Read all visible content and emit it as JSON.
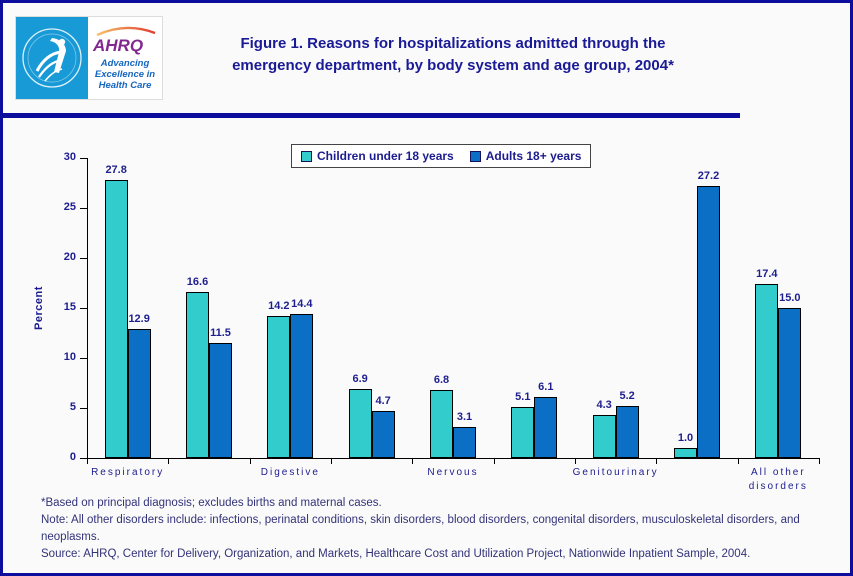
{
  "header": {
    "logo": {
      "hhs_seal": "Department of Health & Human Services USA seal",
      "org_wordmark": "AHRQ",
      "tagline_lines": [
        "Advancing",
        "Excellence in",
        "Health Care"
      ]
    },
    "title_line1": "Figure 1. Reasons for hospitalizations admitted through the",
    "title_line2": "emergency department, by body system and age group, 2004*"
  },
  "chart_data": {
    "type": "bar",
    "title": "Figure 1. Reasons for hospitalizations admitted through the emergency department, by body system and age group, 2004*",
    "xlabel": "",
    "ylabel": "Percent",
    "ylim": [
      0,
      30
    ],
    "yticks": [
      0,
      5,
      10,
      15,
      20,
      25,
      30
    ],
    "grid": false,
    "legend_position": "top-center",
    "categories": [
      "Respiratory",
      "",
      "Digestive",
      "",
      "Nervous",
      "",
      "Genitourinary",
      "",
      "All other disorders"
    ],
    "category_labels": [
      {
        "at": 0,
        "lines": [
          "Respiratory"
        ]
      },
      {
        "at": 2,
        "lines": [
          "Digestive"
        ]
      },
      {
        "at": 4,
        "lines": [
          "Nervous"
        ]
      },
      {
        "at": 6,
        "lines": [
          "Genitourinary"
        ]
      },
      {
        "at": 8,
        "lines": [
          "All other",
          "disorders"
        ]
      }
    ],
    "series": [
      {
        "name": "Children under 18 years",
        "color": "#33cccc",
        "values": [
          27.8,
          16.6,
          14.2,
          6.9,
          6.8,
          5.1,
          4.3,
          1.0,
          17.4
        ]
      },
      {
        "name": "Adults 18+ years",
        "color": "#0b6fc5",
        "values": [
          12.9,
          11.5,
          14.4,
          4.7,
          3.1,
          6.1,
          5.2,
          27.2,
          15.0
        ]
      }
    ]
  },
  "footnotes": {
    "asterisk": "*Based on principal diagnosis; excludes births and maternal cases.",
    "note": "Note: All other disorders include: infections, perinatal conditions, skin disorders, blood disorders, congenital disorders,  musculoskeletal disorders, and neoplasms.",
    "source": "Source: AHRQ, Center for Delivery, Organization, and Markets, Healthcare Cost and Utilization Project, Nationwide Inpatient Sample, 2004."
  },
  "colors": {
    "frame_navy": "#0d0d9d",
    "title_navy": "#1a1a96",
    "label_navy": "#1f1f8f",
    "children_teal": "#33cccc",
    "adults_blue": "#0b6fc5",
    "hhs_blue": "#189ad7",
    "ahrq_purple": "#812990",
    "swoosh_orange": "#f49c20",
    "tagline_blue": "#1565c0",
    "footnote_blue": "#33337a"
  }
}
